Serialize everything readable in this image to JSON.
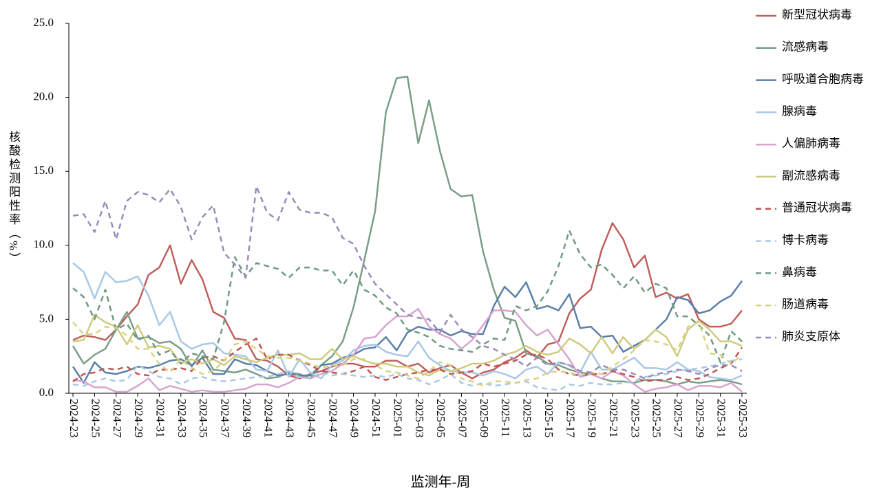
{
  "chart_data": {
    "type": "line",
    "xlabel": "监测年-周",
    "ylabel": "核酸检测阳性率（%）",
    "categories": [
      "2024-23",
      null,
      "2024-25",
      null,
      "2024-27",
      null,
      "2024-29",
      null,
      "2024-31",
      null,
      "2024-33",
      null,
      "2024-35",
      null,
      "2024-37",
      null,
      "2024-39",
      null,
      "2024-41",
      null,
      "2024-43",
      null,
      "2024-45",
      null,
      "2024-47",
      null,
      "2024-49",
      null,
      "2024-51",
      null,
      "2025-01",
      null,
      "2025-03",
      null,
      "2025-05",
      null,
      "2025-07",
      null,
      "2025-09",
      null,
      "2025-11",
      null,
      "2025-13",
      null,
      "2025-15",
      null,
      "2025-17",
      null,
      "2025-19",
      null,
      "2025-21",
      null,
      "2025-23",
      null,
      "2025-25",
      null,
      "2025-27",
      null,
      "2025-29",
      null,
      "2025-31",
      null,
      "2025-33"
    ],
    "ylim": [
      0,
      25
    ],
    "yticks": [
      {
        "value": 0,
        "label": "0.0"
      },
      {
        "value": 5,
        "label": "5.0"
      },
      {
        "value": 10,
        "label": "10.0"
      },
      {
        "value": 15,
        "label": "15.0"
      },
      {
        "value": 20,
        "label": "20.0"
      },
      {
        "value": 25,
        "label": "25.0"
      }
    ],
    "legend": "right",
    "series": [
      {
        "name": "新型冠状病毒",
        "color": "#c0605c",
        "dash": false,
        "values": [
          3.6,
          3.9,
          3.8,
          3.6,
          4.3,
          5.2,
          6.0,
          8.0,
          8.5,
          10.0,
          7.4,
          9.0,
          7.7,
          5.5,
          5.1,
          3.7,
          3.6,
          2.3,
          2.2,
          1.8,
          1.2,
          1.0,
          1.3,
          1.5,
          1.8,
          2.0,
          2.0,
          1.8,
          1.8,
          2.2,
          2.2,
          1.8,
          2.0,
          1.4,
          1.7,
          1.9,
          1.4,
          1.0,
          1.4,
          1.6,
          2.1,
          2.4,
          2.9,
          2.4,
          3.3,
          3.5,
          5.4,
          6.4,
          7.0,
          9.7,
          11.5,
          10.4,
          8.5,
          9.3,
          6.5,
          6.8,
          6.4,
          6.7,
          5.0,
          4.5,
          4.5,
          4.7,
          5.6
        ]
      },
      {
        "name": "流感病毒",
        "color": "#7a9e87",
        "dash": false,
        "values": [
          3.2,
          2.0,
          2.6,
          3.0,
          4.3,
          5.5,
          3.7,
          3.8,
          3.4,
          3.5,
          3.0,
          1.8,
          2.9,
          1.6,
          1.5,
          1.4,
          1.6,
          1.3,
          1.0,
          1.1,
          1.4,
          1.3,
          1.0,
          1.9,
          2.5,
          3.5,
          5.8,
          9.0,
          12.3,
          19.0,
          21.3,
          21.4,
          16.9,
          19.8,
          16.4,
          13.8,
          13.3,
          13.4,
          9.6,
          7.0,
          5.1,
          4.9,
          2.7,
          2.5,
          2.0,
          1.9,
          1.6,
          1.4,
          1.3,
          1.0,
          0.8,
          0.8,
          0.7,
          0.9,
          0.9,
          0.8,
          0.6,
          0.8,
          0.7,
          0.8,
          0.9,
          0.8,
          0.6
        ]
      },
      {
        "name": "呼吸道合胞病毒",
        "color": "#5a7fa8",
        "dash": false,
        "values": [
          1.8,
          0.7,
          2.1,
          1.4,
          1.3,
          1.5,
          1.8,
          1.7,
          1.9,
          2.2,
          2.3,
          1.9,
          2.4,
          1.3,
          1.3,
          2.3,
          2.0,
          1.9,
          1.5,
          1.2,
          1.3,
          1.2,
          1.2,
          1.9,
          2.0,
          2.4,
          2.6,
          3.0,
          3.1,
          3.8,
          2.9,
          4.1,
          4.5,
          4.3,
          4.3,
          3.9,
          4.2,
          4.0,
          4.0,
          5.9,
          7.2,
          6.5,
          7.5,
          5.7,
          5.9,
          5.6,
          6.7,
          4.4,
          4.5,
          3.8,
          3.9,
          2.8,
          3.2,
          3.6,
          4.3,
          5.0,
          6.5,
          6.3,
          5.4,
          5.6,
          6.2,
          6.6,
          7.6
        ]
      },
      {
        "name": "腺病毒",
        "color": "#a9c8e6",
        "dash": false,
        "values": [
          8.8,
          8.2,
          6.4,
          8.2,
          7.5,
          7.6,
          7.9,
          6.6,
          4.6,
          5.5,
          3.5,
          3.0,
          3.3,
          3.4,
          2.7,
          2.6,
          2.5,
          1.6,
          1.5,
          2.9,
          1.1,
          2.3,
          1.4,
          1.0,
          1.9,
          2.2,
          2.9,
          3.2,
          3.3,
          2.8,
          2.6,
          2.5,
          3.5,
          2.4,
          1.9,
          1.5,
          1.4,
          1.4,
          1.2,
          1.5,
          1.3,
          1.0,
          1.6,
          1.8,
          1.3,
          2.1,
          1.9,
          1.4,
          2.8,
          1.6,
          1.6,
          2.0,
          2.4,
          1.7,
          1.7,
          1.6,
          2.1,
          1.6,
          1.5,
          1.1,
          1.0,
          0.9,
          1.2
        ]
      },
      {
        "name": "人偏肺病毒",
        "color": "#d9a3cf",
        "dash": false,
        "values": [
          0.9,
          0.8,
          0.4,
          0.4,
          0.1,
          0.1,
          0.5,
          1.0,
          0.2,
          0.5,
          0.3,
          0.1,
          0.2,
          0.1,
          0.1,
          0.2,
          0.3,
          0.6,
          0.6,
          0.4,
          0.7,
          1.1,
          1.0,
          1.3,
          1.5,
          2.0,
          2.6,
          3.7,
          3.8,
          4.6,
          5.2,
          5.2,
          5.7,
          4.5,
          4.0,
          3.7,
          3.0,
          3.6,
          4.6,
          5.6,
          5.6,
          5.5,
          4.6,
          3.9,
          4.3,
          3.3,
          2.3,
          1.1,
          1.3,
          1.0,
          1.5,
          1.2,
          0.6,
          0.1,
          0.3,
          0.4,
          0.6,
          0.2,
          0.5,
          0.5,
          0.4,
          0.7,
          0.1
        ]
      },
      {
        "name": "副流感病毒",
        "color": "#cfcb7e",
        "dash": false,
        "values": [
          3.5,
          3.6,
          5.3,
          4.8,
          4.5,
          3.3,
          4.6,
          3.1,
          3.2,
          3.0,
          2.0,
          2.3,
          2.0,
          2.3,
          1.9,
          2.5,
          2.3,
          2.1,
          2.4,
          2.6,
          2.6,
          2.7,
          2.3,
          2.3,
          3.0,
          2.3,
          2.5,
          2.2,
          2.0,
          2.0,
          1.8,
          1.8,
          1.4,
          1.2,
          1.6,
          1.5,
          1.7,
          2.0,
          2.0,
          2.2,
          2.6,
          2.8,
          3.2,
          2.8,
          2.6,
          2.8,
          3.7,
          3.3,
          2.7,
          3.8,
          2.7,
          3.8,
          3.0,
          3.6,
          4.3,
          3.8,
          2.5,
          4.3,
          4.9,
          4.3,
          3.5,
          3.5,
          3.2
        ]
      },
      {
        "name": "普通冠状病毒",
        "color": "#c05650",
        "dash": true,
        "values": [
          0.8,
          1.3,
          1.4,
          1.7,
          1.6,
          1.8,
          1.3,
          1.2,
          1.6,
          1.6,
          1.7,
          1.5,
          2.4,
          2.5,
          2.2,
          2.8,
          3.3,
          3.7,
          2.3,
          2.6,
          2.6,
          2.2,
          1.9,
          1.5,
          1.4,
          1.3,
          1.5,
          1.8,
          1.1,
          0.9,
          1.1,
          1.3,
          1.4,
          1.6,
          1.6,
          1.3,
          1.4,
          1.5,
          2.0,
          1.8,
          2.0,
          2.2,
          2.6,
          2.6,
          2.3,
          1.6,
          1.3,
          1.2,
          1.3,
          1.3,
          1.5,
          1.3,
          1.1,
          0.8,
          0.9,
          0.9,
          1.1,
          0.9,
          1.0,
          1.3,
          1.7,
          2.0,
          3.1
        ]
      },
      {
        "name": "博卡病毒",
        "color": "#a9c8e6",
        "dash": true,
        "values": [
          0.6,
          0.5,
          0.8,
          1.0,
          0.8,
          0.9,
          1.9,
          1.5,
          1.1,
          1.0,
          0.6,
          1.0,
          1.1,
          0.9,
          0.8,
          0.9,
          1.0,
          1.1,
          1.1,
          1.3,
          1.5,
          1.1,
          1.0,
          1.4,
          1.2,
          1.3,
          1.2,
          1.1,
          1.2,
          1.1,
          1.3,
          1.0,
          0.9,
          0.6,
          0.9,
          1.3,
          0.7,
          0.5,
          0.7,
          0.5,
          0.6,
          0.7,
          0.8,
          0.4,
          0.3,
          0.2,
          0.6,
          0.5,
          0.7,
          0.6,
          0.6,
          0.7,
          0.8,
          1.1,
          1.2,
          1.3,
          1.5,
          1.6,
          1.7,
          1.8,
          2.0,
          2.2,
          2.3
        ]
      },
      {
        "name": "鼻病毒",
        "color": "#6e9a80",
        "dash": true,
        "values": [
          7.1,
          6.5,
          5.0,
          7.0,
          4.3,
          4.7,
          3.6,
          3.9,
          2.6,
          2.9,
          2.0,
          2.7,
          2.5,
          2.3,
          4.8,
          9.2,
          7.9,
          8.8,
          8.6,
          8.4,
          7.8,
          8.5,
          8.5,
          8.3,
          8.3,
          7.3,
          8.3,
          7.0,
          6.6,
          5.8,
          5.4,
          4.3,
          4.1,
          3.8,
          3.2,
          3.0,
          2.9,
          2.8,
          3.3,
          3.7,
          3.6,
          5.9,
          5.6,
          5.9,
          6.9,
          8.6,
          11.0,
          9.4,
          8.5,
          8.7,
          8.0,
          7.1,
          7.9,
          6.8,
          7.4,
          7.1,
          5.2,
          5.2,
          4.6,
          3.9,
          2.1,
          4.2,
          3.5
        ]
      },
      {
        "name": "肠道病毒",
        "color": "#d8d384",
        "dash": true,
        "values": [
          4.8,
          4.0,
          4.0,
          4.5,
          4.4,
          3.9,
          3.0,
          3.0,
          2.0,
          1.4,
          2.3,
          1.7,
          1.3,
          1.5,
          2.2,
          3.3,
          3.5,
          3.0,
          2.5,
          2.4,
          2.4,
          2.2,
          2.0,
          1.7,
          1.9,
          1.9,
          2.3,
          2.3,
          1.9,
          1.5,
          1.4,
          1.2,
          1.0,
          1.5,
          2.1,
          1.9,
          1.0,
          0.8,
          0.5,
          0.8,
          0.8,
          0.7,
          0.9,
          1.0,
          1.4,
          1.5,
          1.4,
          1.2,
          1.4,
          1.3,
          1.8,
          2.3,
          2.9,
          3.6,
          3.5,
          3.3,
          2.9,
          4.5,
          4.8,
          2.7,
          2.6,
          2.0,
          2.6
        ]
      },
      {
        "name": "肺炎支原体",
        "color": "#9a8ab8",
        "dash": true,
        "values": [
          12.0,
          12.1,
          10.9,
          13.0,
          10.4,
          13.0,
          13.6,
          13.4,
          12.9,
          13.8,
          12.6,
          10.4,
          11.9,
          12.7,
          9.5,
          8.7,
          7.8,
          14.0,
          12.2,
          11.7,
          13.6,
          12.4,
          12.2,
          12.2,
          11.9,
          10.5,
          10.1,
          8.6,
          7.4,
          6.7,
          6.0,
          5.3,
          5.1,
          5.0,
          4.1,
          5.3,
          4.3,
          3.8,
          3.2,
          3.0,
          2.6,
          2.3,
          1.8,
          2.4,
          1.9,
          2.1,
          1.9,
          1.5,
          1.4,
          1.9,
          1.6,
          1.6,
          1.3,
          1.0,
          1.3,
          1.4,
          1.6,
          1.5,
          1.3,
          1.7,
          1.9,
          1.9,
          1.5
        ]
      }
    ]
  }
}
